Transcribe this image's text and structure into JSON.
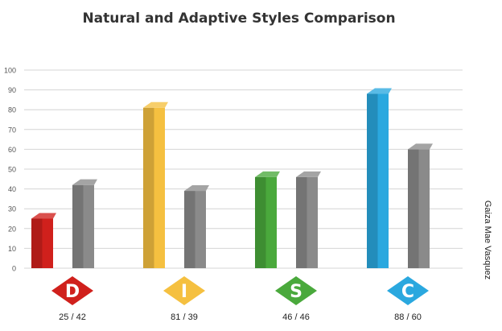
{
  "chart_data": {
    "type": "bar",
    "title": "Natural and Adaptive Styles Comparison",
    "categories": [
      "D",
      "I",
      "S",
      "C"
    ],
    "series": [
      {
        "values": [
          25,
          81,
          46,
          88
        ]
      },
      {
        "values": [
          42,
          39,
          46,
          60
        ]
      }
    ],
    "ylim": [
      0,
      100
    ],
    "yticks": [
      0,
      10,
      20,
      30,
      40,
      50,
      60,
      70,
      80,
      90,
      100
    ],
    "bar_labels": [
      "25 / 42",
      "81 / 39",
      "46 / 46",
      "88 / 60"
    ],
    "grid": true,
    "colors": {
      "D": "#d0201c",
      "I": "#f5c040",
      "S": "#4aa93c",
      "C": "#2aa8df",
      "adaptive": "#8a8a8a"
    }
  },
  "side_label": "Gaiza Mae Vasquez"
}
